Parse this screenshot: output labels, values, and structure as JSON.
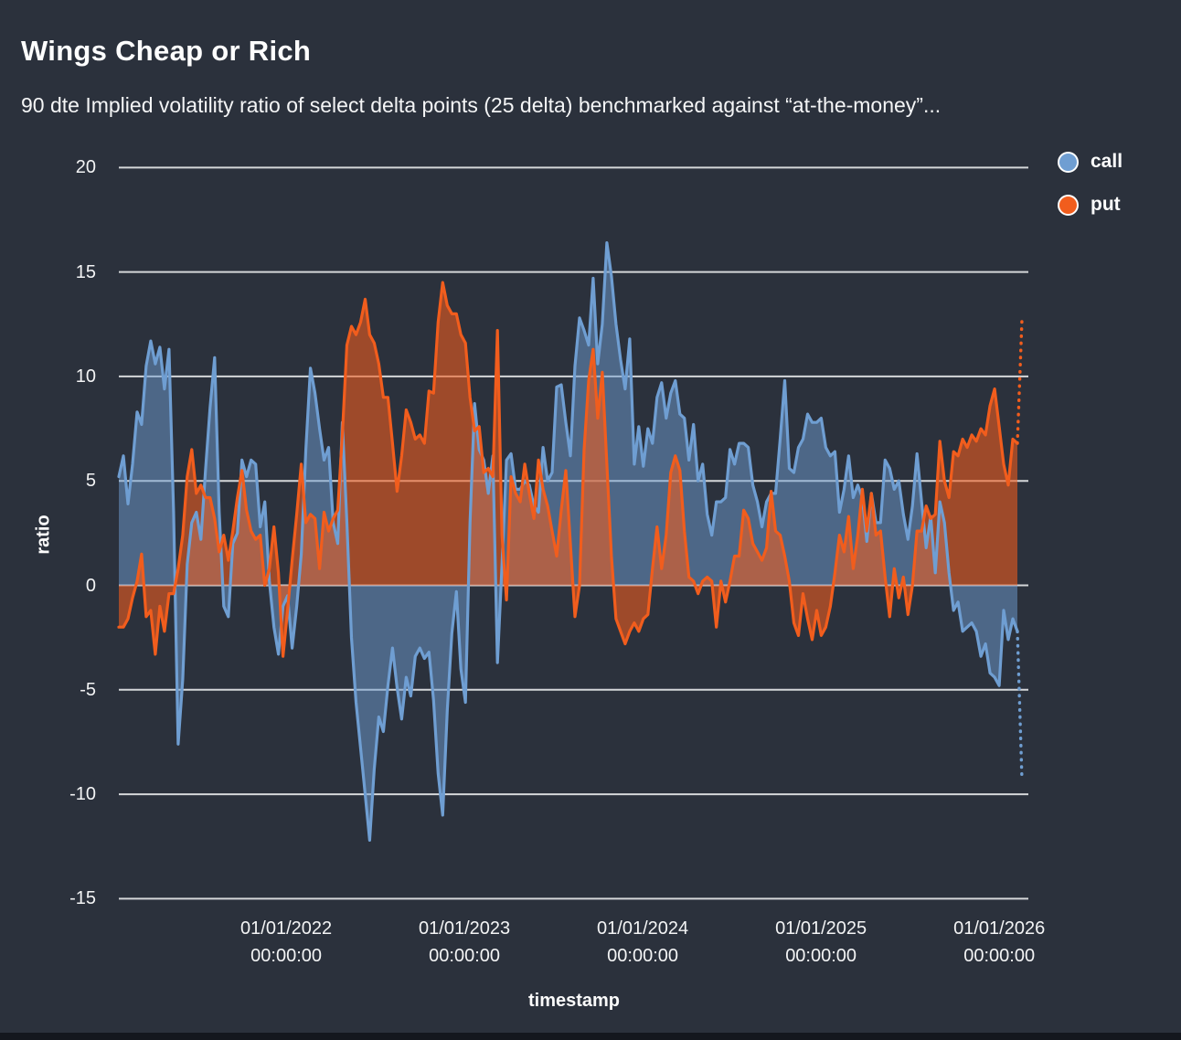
{
  "header": {
    "title": "Wings Cheap or Rich",
    "subtitle": "90 dte Implied volatility ratio of select delta points (25 delta) benchmarked against “at-the-money”..."
  },
  "legend": [
    {
      "label": "call",
      "color": "#6f9ed2"
    },
    {
      "label": "put",
      "color": "#f15d1d"
    }
  ],
  "chart_data": {
    "type": "area",
    "title": "Wings Cheap or Rich",
    "grid": "horizontal-only",
    "background": "#2b313c",
    "gridline_color": "#e8e9eb",
    "x_axis": {
      "label": "timestamp",
      "start": "2021-01-19 00:00:00",
      "end": "2026-02-15 00:00:00",
      "ticks": [
        {
          "date": "01/01/2022",
          "time": "00:00:00",
          "pos": 0.184
        },
        {
          "date": "01/01/2023",
          "time": "00:00:00",
          "pos": 0.38
        },
        {
          "date": "01/01/2024",
          "time": "00:00:00",
          "pos": 0.576
        },
        {
          "date": "01/01/2025",
          "time": "00:00:00",
          "pos": 0.772
        },
        {
          "date": "01/01/2026",
          "time": "00:00:00",
          "pos": 0.968
        }
      ]
    },
    "y_axis": {
      "label": "ratio",
      "ticks": [
        20,
        15,
        10,
        5,
        0,
        -5,
        -10,
        -15
      ],
      "ylim": [
        -17.8,
        21.8
      ]
    },
    "sampling": "uniform in time from start to end, ~11 day step",
    "series": [
      {
        "name": "call",
        "color": "#6f9ed2",
        "fill_opacity": 0.5,
        "values": [
          5.2,
          6.2,
          3.9,
          5.8,
          8.3,
          7.7,
          10.5,
          11.7,
          10.6,
          11.4,
          9.4,
          11.3,
          3.5,
          -7.6,
          -4.5,
          1.0,
          3.0,
          3.5,
          2.2,
          5.5,
          8.5,
          10.9,
          3.5,
          -1.0,
          -1.5,
          2.0,
          2.5,
          6.0,
          5.2,
          6.0,
          5.8,
          2.8,
          4.0,
          0.2,
          -2.0,
          -3.3,
          -1.0,
          -0.5,
          -3.0,
          -1.0,
          1.5,
          6.5,
          10.4,
          9.2,
          7.5,
          6.0,
          6.6,
          3.0,
          2.0,
          7.8,
          3.0,
          -2.5,
          -5.6,
          -7.8,
          -10.0,
          -12.2,
          -8.8,
          -6.3,
          -7.0,
          -4.8,
          -3.0,
          -4.9,
          -6.4,
          -4.4,
          -5.3,
          -3.4,
          -3.0,
          -3.5,
          -3.2,
          -5.5,
          -9.0,
          -11.0,
          -6.0,
          -2.3,
          -0.3,
          -4.0,
          -5.6,
          3.0,
          8.7,
          6.5,
          6.0,
          4.4,
          6.2,
          -3.7,
          1.0,
          6.0,
          6.3,
          4.6,
          4.6,
          5.0,
          4.8,
          3.8,
          3.5,
          6.6,
          5.0,
          5.4,
          9.5,
          9.6,
          7.8,
          6.2,
          10.5,
          12.8,
          12.2,
          11.5,
          14.7,
          10.6,
          12.5,
          16.4,
          14.8,
          12.5,
          10.8,
          9.4,
          11.8,
          5.8,
          7.6,
          5.7,
          7.5,
          6.8,
          9.0,
          9.7,
          8.0,
          9.2,
          9.8,
          8.2,
          8.0,
          6.0,
          7.7,
          5.0,
          5.8,
          3.4,
          2.4,
          4.0,
          4.0,
          4.2,
          6.5,
          5.8,
          6.8,
          6.8,
          6.6,
          4.8,
          4.0,
          2.8,
          4.0,
          4.4,
          4.4,
          7.0,
          9.8,
          5.6,
          5.4,
          6.6,
          7.0,
          8.2,
          7.8,
          7.8,
          8.0,
          6.6,
          6.2,
          6.4,
          3.5,
          4.6,
          6.2,
          4.2,
          4.8,
          4.2,
          2.1,
          4.4,
          3.0,
          3.0,
          6.0,
          5.6,
          4.6,
          5.0,
          3.4,
          2.2,
          3.8,
          6.3,
          4.0,
          1.8,
          3.3,
          0.6,
          4.0,
          3.0,
          0.6,
          -1.2,
          -0.8,
          -2.2,
          -2.0,
          -1.8,
          -2.2,
          -3.4,
          -2.8,
          -4.2,
          -4.4,
          -4.8,
          -1.2,
          -2.6,
          -1.6,
          -2.2,
          -9.3
        ]
      },
      {
        "name": "put",
        "color": "#f15d1d",
        "fill_opacity": 0.58,
        "values": [
          -2.0,
          -2.0,
          -1.6,
          -0.6,
          0.2,
          1.5,
          -1.5,
          -1.2,
          -3.3,
          -1.0,
          -2.2,
          -0.4,
          -0.4,
          0.8,
          2.4,
          5.2,
          6.5,
          4.4,
          4.8,
          4.2,
          4.2,
          3.2,
          1.6,
          2.4,
          1.2,
          2.6,
          4.2,
          5.5,
          3.6,
          2.6,
          2.2,
          2.4,
          0.0,
          0.8,
          2.8,
          0.6,
          -3.4,
          -1.2,
          1.2,
          3.4,
          5.8,
          3.0,
          3.4,
          3.2,
          0.8,
          3.5,
          2.6,
          3.2,
          3.6,
          7.2,
          11.5,
          12.4,
          12.0,
          12.6,
          13.7,
          12.0,
          11.6,
          10.6,
          9.0,
          9.0,
          6.8,
          4.5,
          6.2,
          8.4,
          7.8,
          7.0,
          7.2,
          6.8,
          9.3,
          9.2,
          12.6,
          14.5,
          13.4,
          13.0,
          13.0,
          12.0,
          11.6,
          9.0,
          7.4,
          7.6,
          5.4,
          5.6,
          5.2,
          12.2,
          2.4,
          -0.7,
          5.2,
          4.4,
          4.0,
          5.8,
          4.4,
          3.2,
          6.0,
          4.6,
          3.8,
          2.6,
          1.4,
          3.6,
          5.5,
          2.0,
          -1.5,
          0.0,
          6.5,
          9.8,
          11.3,
          8.0,
          10.2,
          5.8,
          1.4,
          -1.6,
          -2.2,
          -2.8,
          -2.2,
          -1.8,
          -2.2,
          -1.6,
          -1.4,
          0.8,
          2.8,
          0.8,
          2.4,
          5.4,
          6.2,
          5.5,
          2.6,
          0.4,
          0.2,
          -0.4,
          0.2,
          0.4,
          0.2,
          -2.0,
          0.2,
          -0.8,
          0.2,
          1.4,
          1.4,
          3.6,
          3.2,
          2.0,
          1.6,
          1.2,
          1.8,
          4.5,
          2.6,
          2.4,
          1.4,
          0.2,
          -1.8,
          -2.4,
          -0.4,
          -1.6,
          -2.6,
          -1.2,
          -2.4,
          -2.0,
          -1.0,
          0.6,
          2.4,
          1.6,
          3.3,
          0.8,
          2.4,
          4.6,
          2.6,
          4.4,
          2.4,
          2.6,
          0.4,
          -1.5,
          0.8,
          -0.6,
          0.4,
          -1.4,
          0.0,
          2.6,
          2.6,
          3.8,
          3.2,
          3.4,
          6.9,
          5.0,
          4.2,
          6.4,
          6.2,
          7.0,
          6.6,
          7.2,
          6.9,
          7.5,
          7.2,
          8.6,
          9.4,
          7.6,
          5.8,
          4.8,
          7.0,
          6.8,
          12.7
        ]
      }
    ]
  }
}
